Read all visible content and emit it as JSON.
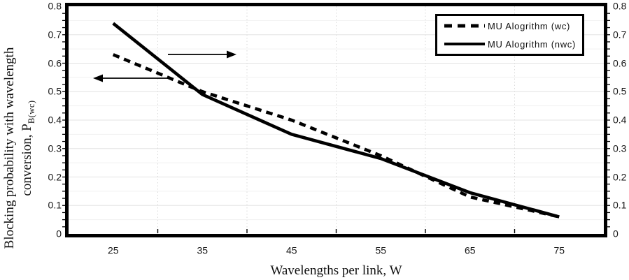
{
  "chart_data": {
    "type": "line",
    "title": "",
    "xlabel": "Wavelengths per link, W",
    "ylabel": "Blocking probability with wavelength conversion, P_B(wc)",
    "ylabel_line1": "Blocking probability with wavelength",
    "ylabel_line2_text": "conversion, P",
    "ylabel_line2_subscript": "B(wc)",
    "x": [
      25,
      35,
      45,
      55,
      65,
      75
    ],
    "x_tick_labels": [
      "25",
      "35",
      "45",
      "55",
      "65",
      "75"
    ],
    "y_tick_labels": [
      "0",
      "0.1",
      "0.2",
      "0.3",
      "0.4",
      "0.5",
      "0.6",
      "0.7",
      "0.8"
    ],
    "y_tick_values": [
      0,
      0.1,
      0.2,
      0.3,
      0.4,
      0.5,
      0.6,
      0.7,
      0.8
    ],
    "ylim": [
      0,
      0.8
    ],
    "right_axis_duplicate": true,
    "grid": {
      "horizontal_major_step": 0.1,
      "horizontal_minor_step": 0.05,
      "vertical_dotted_at_category_boundaries": true
    },
    "legend_position": "top-right",
    "series": [
      {
        "name": "MU Alogrithm (wc)",
        "line_style": "dashed",
        "color": "#000000",
        "values": [
          0.63,
          0.5,
          0.4,
          0.275,
          0.13,
          0.06
        ]
      },
      {
        "name": "MU Alogrithm (nwc)",
        "line_style": "solid",
        "color": "#000000",
        "values": [
          0.74,
          0.49,
          0.35,
          0.265,
          0.145,
          0.06
        ]
      }
    ],
    "annotations": [
      {
        "type": "arrow",
        "direction": "right"
      },
      {
        "type": "arrow",
        "direction": "left"
      }
    ]
  },
  "legend": {
    "items": [
      {
        "label": "MU Alogrithm (wc)",
        "line_style": "dashed"
      },
      {
        "label": "MU Alogrithm (nwc)",
        "line_style": "solid"
      }
    ]
  },
  "colors": {
    "line": "#000000",
    "background": "#ffffff",
    "grid_major": "#e3e3e3",
    "grid_minor": "#f1f1f1",
    "grid_vertical": "#d9d9d9"
  }
}
